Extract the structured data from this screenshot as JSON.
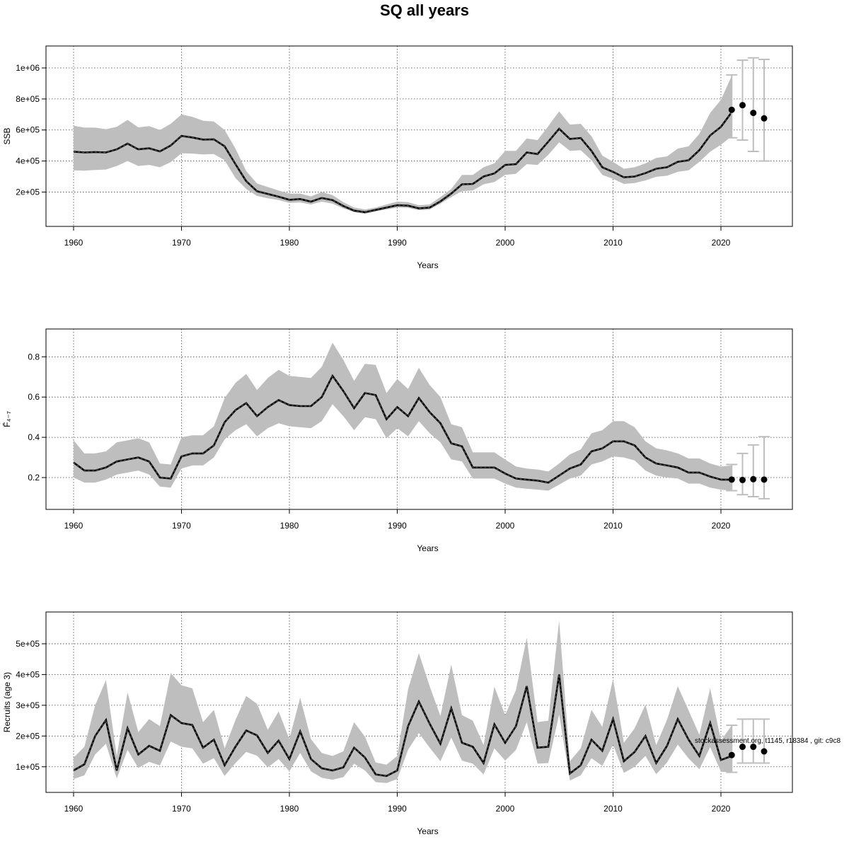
{
  "title": "SQ all years",
  "watermark": "stockassessment.org, t1145, r18384 , git: c9c8",
  "colors": {
    "band": "#bebebe",
    "line": "#000000",
    "grid": "#444444",
    "errbar": "#bebebe"
  },
  "chart_data": [
    {
      "type": "line",
      "ylabel": "SSB",
      "xlabel": "Years",
      "xlim": [
        1960,
        2024
      ],
      "ylim": [
        15000,
        1105000
      ],
      "x_ticks": [
        1960,
        1970,
        1980,
        1990,
        2000,
        2010,
        2020
      ],
      "y_ticks": [
        200000,
        400000,
        600000,
        800000,
        1000000
      ],
      "y_tick_labels": [
        "2e+05",
        "4e+05",
        "6e+05",
        "8e+05",
        "1e+06"
      ],
      "years_start": 1960,
      "estimate": [
        460000,
        455000,
        458000,
        455000,
        475000,
        512000,
        475000,
        482000,
        462000,
        500000,
        562000,
        552000,
        538000,
        540000,
        495000,
        380000,
        270000,
        205000,
        188000,
        170000,
        150000,
        155000,
        138000,
        162000,
        148000,
        110000,
        80000,
        70000,
        85000,
        100000,
        115000,
        112000,
        95000,
        100000,
        140000,
        190000,
        250000,
        252000,
        300000,
        320000,
        375000,
        380000,
        455000,
        445000,
        525000,
        608000,
        542000,
        548000,
        465000,
        360000,
        330000,
        295000,
        300000,
        322000,
        350000,
        360000,
        395000,
        405000,
        470000,
        565000,
        620000,
        715000
      ],
      "lower": [
        340000,
        338000,
        342000,
        345000,
        368000,
        400000,
        368000,
        375000,
        360000,
        392000,
        450000,
        448000,
        443000,
        445000,
        405000,
        290000,
        220000,
        175000,
        160000,
        148000,
        130000,
        133000,
        120000,
        138000,
        125000,
        95000,
        70000,
        60000,
        75000,
        88000,
        100000,
        98000,
        83000,
        87000,
        125000,
        168000,
        205000,
        210000,
        250000,
        265000,
        310000,
        318000,
        380000,
        375000,
        440000,
        520000,
        465000,
        470000,
        405000,
        310000,
        285000,
        252000,
        258000,
        275000,
        298000,
        305000,
        330000,
        340000,
        395000,
        460000,
        505000,
        560000
      ],
      "upper": [
        628000,
        615000,
        615000,
        605000,
        620000,
        665000,
        617000,
        625000,
        600000,
        640000,
        700000,
        685000,
        660000,
        655000,
        600000,
        480000,
        335000,
        255000,
        232000,
        210000,
        190000,
        190000,
        172000,
        200000,
        180000,
        135000,
        100000,
        88000,
        100000,
        120000,
        138000,
        135000,
        115000,
        120000,
        168000,
        220000,
        310000,
        310000,
        360000,
        385000,
        465000,
        465000,
        545000,
        535000,
        625000,
        720000,
        635000,
        640000,
        560000,
        435000,
        395000,
        350000,
        360000,
        385000,
        420000,
        430000,
        480000,
        495000,
        575000,
        710000,
        795000,
        950000
      ],
      "forecast": {
        "years": [
          2021,
          2022,
          2023,
          2024
        ],
        "median": [
          730000,
          760000,
          710000,
          675000
        ],
        "low": [
          550000,
          535000,
          462000,
          400000
        ],
        "high": [
          955000,
          1050000,
          1065000,
          1055000
        ]
      }
    },
    {
      "type": "line",
      "ylabel": "F̄₄₋₇",
      "xlabel": "Years",
      "xlim": [
        1960,
        2024
      ],
      "ylim": [
        0.07,
        0.91
      ],
      "x_ticks": [
        1960,
        1970,
        1980,
        1990,
        2000,
        2010,
        2020
      ],
      "y_ticks": [
        0.2,
        0.4,
        0.6,
        0.8
      ],
      "y_tick_labels": [
        "0.2",
        "0.4",
        "0.6",
        "0.8"
      ],
      "years_start": 1960,
      "estimate": [
        0.275,
        0.235,
        0.235,
        0.25,
        0.28,
        0.29,
        0.3,
        0.28,
        0.2,
        0.195,
        0.305,
        0.32,
        0.32,
        0.36,
        0.475,
        0.535,
        0.57,
        0.505,
        0.55,
        0.585,
        0.56,
        0.555,
        0.555,
        0.6,
        0.705,
        0.63,
        0.545,
        0.62,
        0.61,
        0.49,
        0.55,
        0.505,
        0.595,
        0.525,
        0.47,
        0.37,
        0.355,
        0.25,
        0.25,
        0.25,
        0.22,
        0.195,
        0.19,
        0.185,
        0.175,
        0.21,
        0.245,
        0.265,
        0.33,
        0.345,
        0.38,
        0.38,
        0.36,
        0.3,
        0.27,
        0.26,
        0.25,
        0.225,
        0.225,
        0.205,
        0.19,
        0.19
      ],
      "lower": [
        0.2,
        0.175,
        0.175,
        0.19,
        0.215,
        0.225,
        0.235,
        0.215,
        0.155,
        0.15,
        0.245,
        0.26,
        0.26,
        0.3,
        0.39,
        0.435,
        0.465,
        0.405,
        0.445,
        0.47,
        0.455,
        0.45,
        0.445,
        0.48,
        0.565,
        0.505,
        0.435,
        0.5,
        0.49,
        0.395,
        0.445,
        0.405,
        0.48,
        0.42,
        0.375,
        0.29,
        0.28,
        0.195,
        0.195,
        0.195,
        0.17,
        0.15,
        0.145,
        0.14,
        0.135,
        0.165,
        0.195,
        0.21,
        0.265,
        0.28,
        0.305,
        0.3,
        0.285,
        0.235,
        0.21,
        0.2,
        0.195,
        0.17,
        0.17,
        0.15,
        0.14,
        0.135
      ],
      "upper": [
        0.385,
        0.32,
        0.32,
        0.33,
        0.375,
        0.385,
        0.395,
        0.375,
        0.27,
        0.265,
        0.4,
        0.41,
        0.41,
        0.455,
        0.595,
        0.67,
        0.715,
        0.635,
        0.695,
        0.735,
        0.705,
        0.7,
        0.695,
        0.75,
        0.87,
        0.785,
        0.68,
        0.765,
        0.76,
        0.62,
        0.69,
        0.64,
        0.745,
        0.66,
        0.6,
        0.465,
        0.45,
        0.325,
        0.325,
        0.325,
        0.29,
        0.255,
        0.245,
        0.24,
        0.23,
        0.27,
        0.315,
        0.34,
        0.42,
        0.435,
        0.48,
        0.48,
        0.45,
        0.38,
        0.345,
        0.335,
        0.32,
        0.295,
        0.295,
        0.27,
        0.255,
        0.26
      ],
      "forecast": {
        "years": [
          2021,
          2022,
          2023,
          2024
        ],
        "median": [
          0.19,
          0.188,
          0.192,
          0.19
        ],
        "low": [
          0.135,
          0.115,
          0.105,
          0.095
        ],
        "high": [
          0.265,
          0.32,
          0.362,
          0.403
        ]
      }
    },
    {
      "type": "line",
      "ylabel": "Recruits (age 3)",
      "xlabel": "Years",
      "xlim": [
        1960,
        2024
      ],
      "ylim": [
        35000,
        585000
      ],
      "x_ticks": [
        1960,
        1970,
        1980,
        1990,
        2000,
        2010,
        2020
      ],
      "y_ticks": [
        100000,
        200000,
        300000,
        400000,
        500000
      ],
      "y_tick_labels": [
        "1e+05",
        "2e+05",
        "3e+05",
        "4e+05",
        "5e+05"
      ],
      "years_start": 1960,
      "estimate": [
        88000,
        108000,
        200000,
        252000,
        88000,
        225000,
        140000,
        168000,
        152000,
        268000,
        242000,
        236000,
        162000,
        188000,
        105000,
        165000,
        218000,
        202000,
        145000,
        185000,
        125000,
        215000,
        125000,
        95000,
        88000,
        98000,
        162000,
        130000,
        75000,
        70000,
        88000,
        232000,
        312000,
        240000,
        175000,
        290000,
        178000,
        165000,
        112000,
        238000,
        178000,
        232000,
        362000,
        162000,
        165000,
        400000,
        78000,
        105000,
        188000,
        152000,
        255000,
        118000,
        148000,
        200000,
        112000,
        168000,
        255000,
        188000,
        135000,
        242000,
        122000,
        135000
      ],
      "lower": [
        60000,
        72000,
        140000,
        175000,
        62000,
        155000,
        96000,
        116000,
        104000,
        182000,
        165000,
        160000,
        110000,
        128000,
        70000,
        112000,
        148000,
        136000,
        98000,
        125000,
        85000,
        145000,
        85000,
        64000,
        58000,
        66000,
        110000,
        88000,
        50000,
        47000,
        60000,
        155000,
        210000,
        162000,
        118000,
        195000,
        120000,
        110000,
        75000,
        160000,
        120000,
        155000,
        245000,
        110000,
        112000,
        270000,
        55000,
        72000,
        128000,
        103000,
        172000,
        80000,
        100000,
        135000,
        76000,
        114000,
        172000,
        127000,
        92000,
        164000,
        84000,
        82000
      ],
      "upper": [
        130000,
        165000,
        300000,
        382000,
        135000,
        342000,
        213000,
        255000,
        232000,
        405000,
        365000,
        355000,
        245000,
        285000,
        160000,
        252000,
        330000,
        305000,
        220000,
        280000,
        190000,
        325000,
        190000,
        145000,
        135000,
        150000,
        245000,
        198000,
        114000,
        107000,
        135000,
        352000,
        470000,
        362000,
        265000,
        432000,
        268000,
        250000,
        170000,
        360000,
        268000,
        350000,
        520000,
        245000,
        250000,
        575000,
        118000,
        160000,
        285000,
        230000,
        385000,
        178000,
        225000,
        302000,
        170000,
        253000,
        362000,
        283000,
        204000,
        355000,
        185000,
        235000
      ],
      "forecast": {
        "years": [
          2021,
          2022,
          2023,
          2024
        ],
        "median": [
          138000,
          165000,
          165000,
          150000
        ],
        "low": [
          82000,
          112000,
          112000,
          112000
        ],
        "high": [
          235000,
          255000,
          255000,
          255000
        ]
      }
    }
  ]
}
